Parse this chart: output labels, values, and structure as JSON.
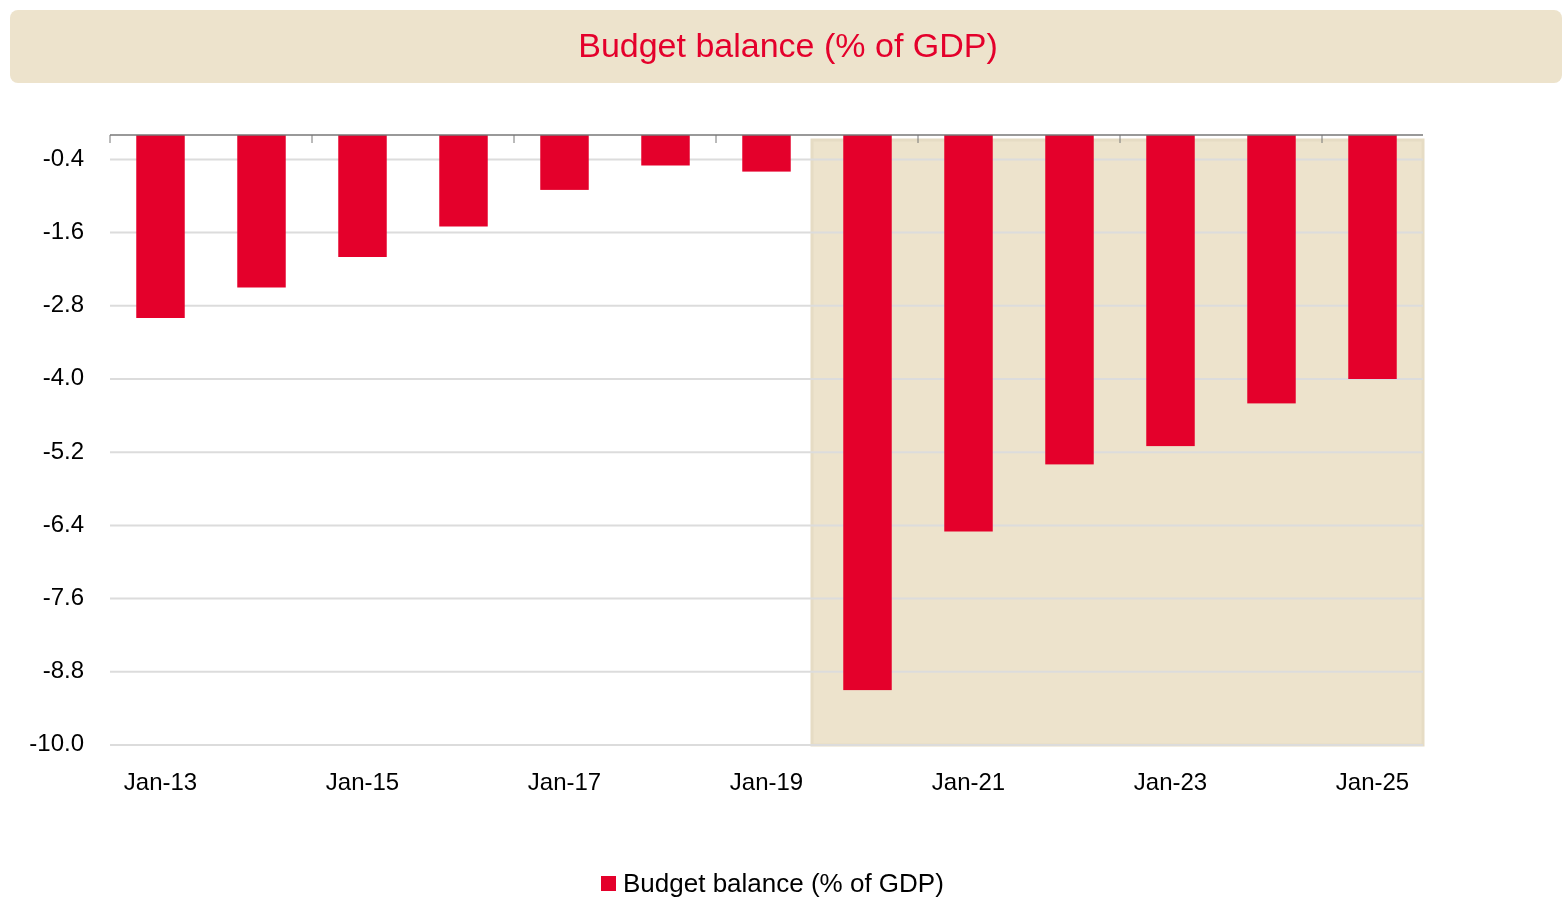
{
  "chart_data": {
    "type": "bar",
    "title": "Budget balance (% of GDP)",
    "categories": [
      "Jan-13",
      null,
      "Jan-15",
      null,
      "Jan-17",
      null,
      "Jan-19",
      null,
      "Jan-21",
      null,
      "Jan-23",
      null,
      "Jan-25"
    ],
    "series": [
      {
        "name": "Budget balance (% of GDP)",
        "color": "#e4002b",
        "values": [
          -3.0,
          -2.5,
          -2.0,
          -1.5,
          -0.9,
          -0.5,
          -0.6,
          -9.1,
          -6.5,
          -5.4,
          -5.1,
          -4.4,
          -4.0
        ]
      }
    ],
    "ylim": [
      -10,
      0
    ],
    "yticks": [
      -0.4,
      -1.6,
      -2.8,
      {
        "value": -4,
        "label": "-4.0"
      },
      -5.2,
      -6.4,
      -7.6,
      -8.8,
      {
        "value": -10,
        "label": "-10.0"
      }
    ],
    "grid": "y",
    "legend": "bottom"
  }
}
